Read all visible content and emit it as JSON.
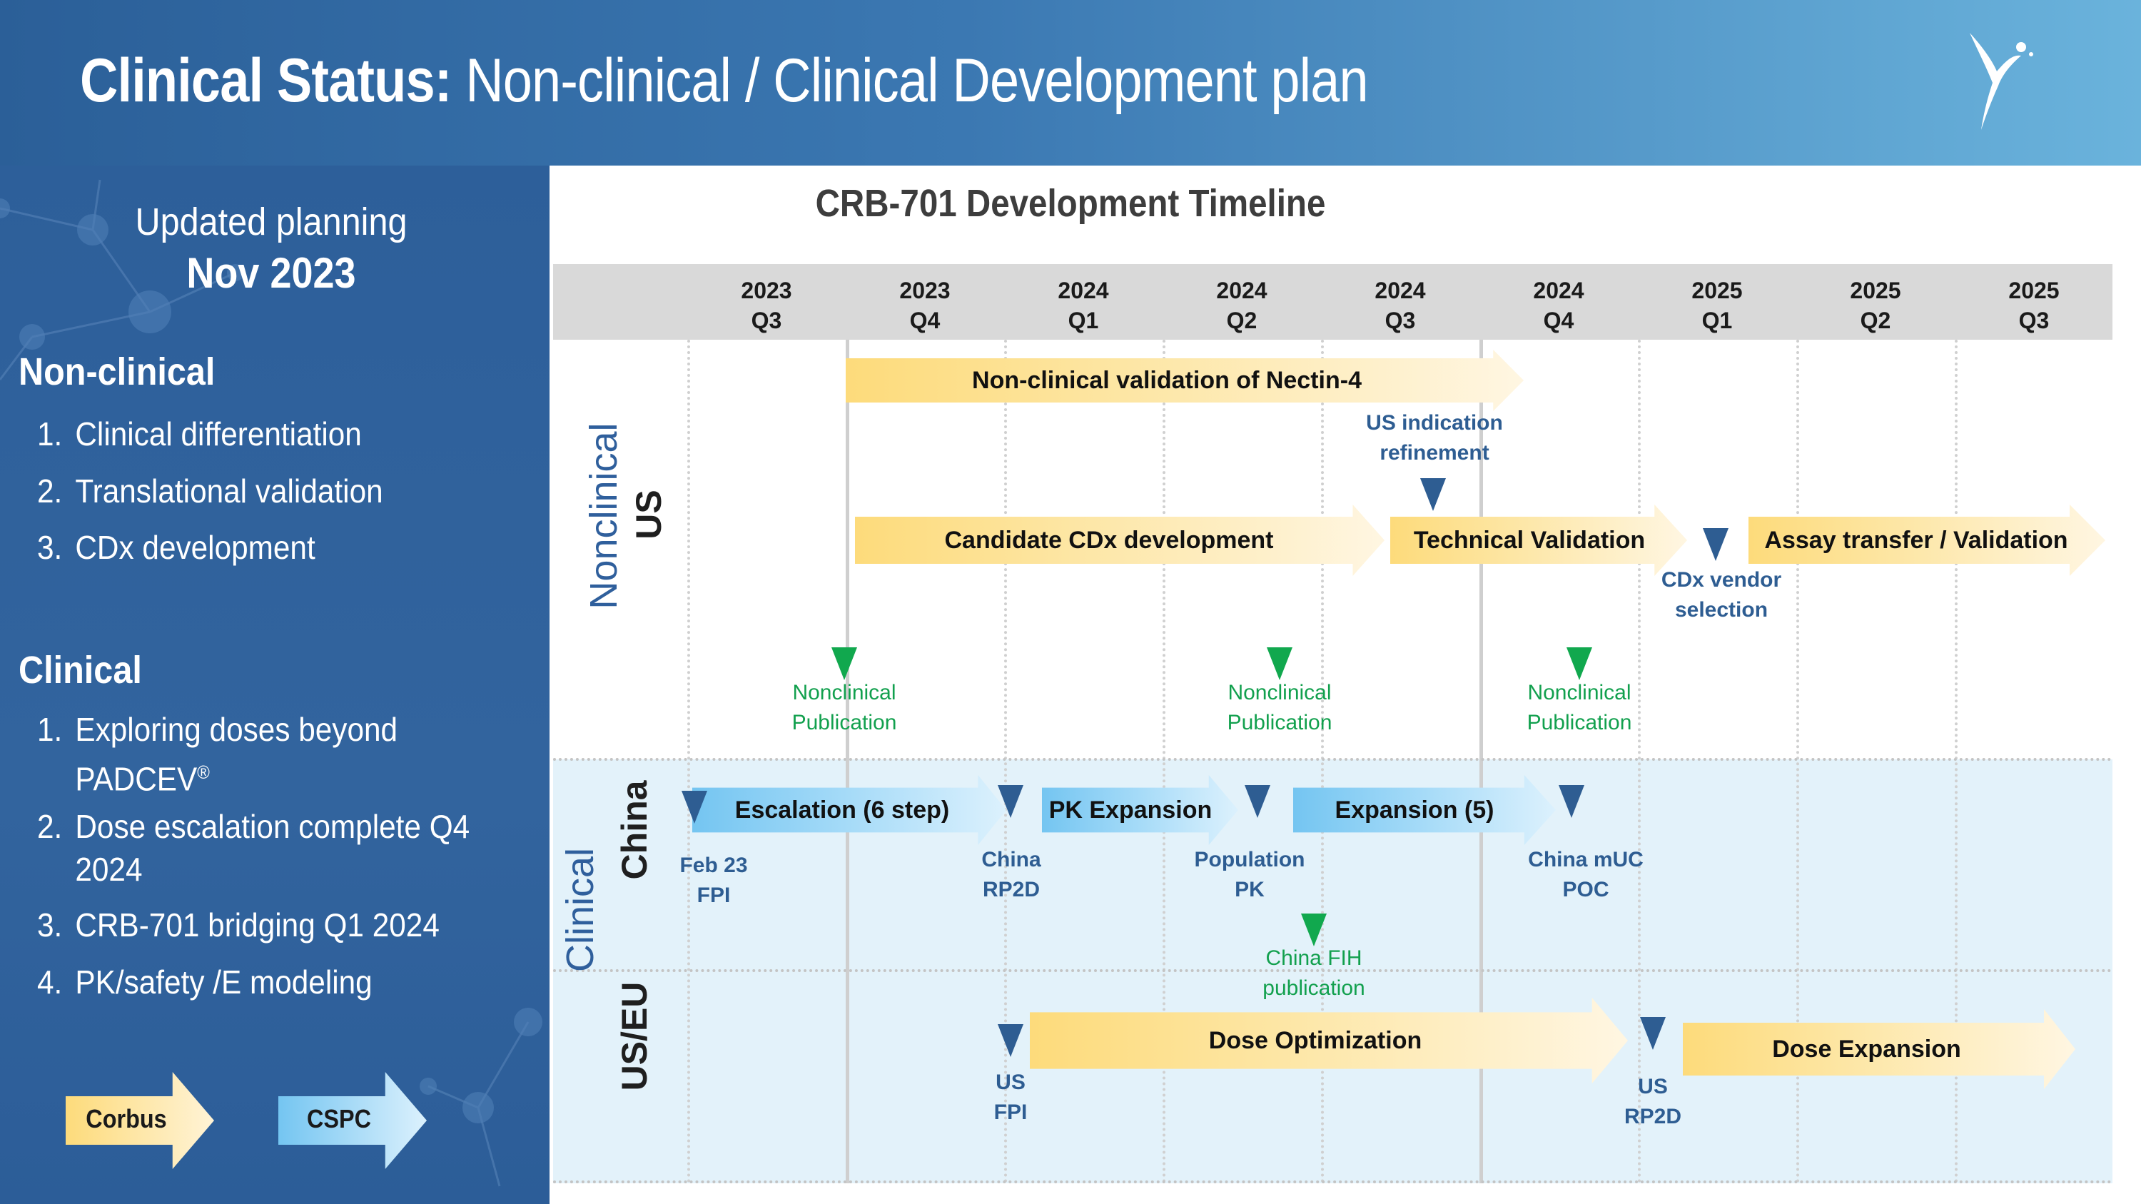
{
  "header": {
    "title_bold": "Clinical Status:",
    "title_rest": " Non-clinical / Clinical Development plan"
  },
  "left_panel": {
    "planning_line1": "Updated planning",
    "planning_line2": "Nov 2023",
    "nonclinical_title": "Non-clinical",
    "nonclinical_items": [
      {
        "num": "1.",
        "text": "Clinical differentiation"
      },
      {
        "num": "2.",
        "text": "Translational validation"
      },
      {
        "num": "3.",
        "text": "CDx development"
      }
    ],
    "clinical_title": "Clinical",
    "clinical_items": [
      {
        "num": "1.",
        "text": "Exploring doses beyond PADCEV",
        "sup": "®"
      },
      {
        "num": "2.",
        "text": "Dose escalation complete Q4 2024"
      },
      {
        "num": "3.",
        "text": "CRB-701 bridging Q1 2024"
      },
      {
        "num": "4.",
        "text": "PK/safety /E  modeling"
      }
    ],
    "legend": {
      "corbus": {
        "label": "Corbus",
        "color": "#fddb7b"
      },
      "cspc": {
        "label": "CSPC",
        "color": "#74c5f1"
      }
    }
  },
  "timeline": {
    "title": "CRB-701 Development Timeline",
    "columns": [
      {
        "year": "2023",
        "quarter": "Q3"
      },
      {
        "year": "2023",
        "quarter": "Q4"
      },
      {
        "year": "2024",
        "quarter": "Q1"
      },
      {
        "year": "2024",
        "quarter": "Q2"
      },
      {
        "year": "2024",
        "quarter": "Q3"
      },
      {
        "year": "2024",
        "quarter": "Q4"
      },
      {
        "year": "2025",
        "quarter": "Q1"
      },
      {
        "year": "2025",
        "quarter": "Q2"
      },
      {
        "year": "2025",
        "quarter": "Q3"
      }
    ],
    "rows": {
      "nonclinical": "Nonclinical",
      "us": "US",
      "clinical": "Clinical",
      "china": "China",
      "useu": "US/EU"
    },
    "bars": {
      "nectin": "Non-clinical validation of Nectin-4",
      "cdx": "Candidate CDx development",
      "techval": "Technical Validation",
      "assay": "Assay transfer / Validation",
      "escalation": "Escalation (6 step)",
      "pkexp": "PK Expansion",
      "expansion5": "Expansion (5)",
      "doseopt": "Dose Optimization",
      "doseexp": "Dose Expansion"
    },
    "milestones": {
      "us_ind_l1": "US indication",
      "us_ind_l2": "refinement",
      "cdx_vendor_l1": "CDx vendor",
      "cdx_vendor_l2": "selection",
      "pub_l1": "Nonclinical",
      "pub_l2": "Publication",
      "feb_l1": "Feb 23",
      "feb_l2": "FPI",
      "china_rp2d_l1": "China",
      "china_rp2d_l2": "RP2D",
      "pop_pk_l1": "Population",
      "pop_pk_l2": "PK",
      "china_muc_l1": "China mUC",
      "china_muc_l2": "POC",
      "china_fih_l1": "China FIH",
      "china_fih_l2": "publication",
      "us_fpi_l1": "US",
      "us_fpi_l2": "FPI",
      "us_rp2d_l1": "US",
      "us_rp2d_l2": "RP2D"
    }
  }
}
